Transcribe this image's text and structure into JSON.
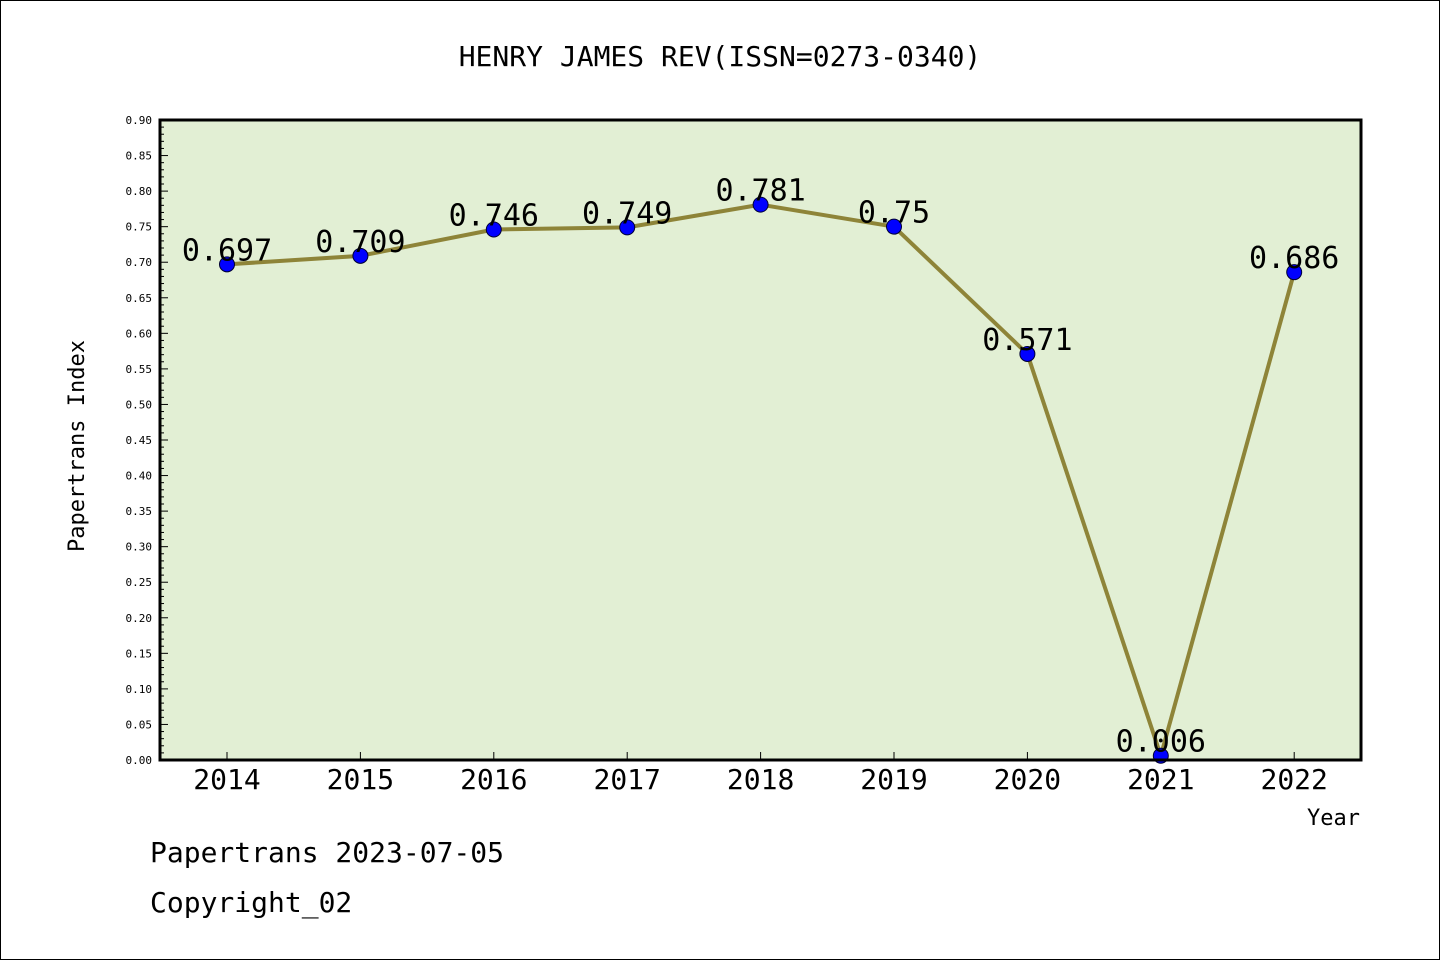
{
  "chart_data": {
    "type": "line",
    "title": "HENRY JAMES REV(ISSN=0273-0340)",
    "xlabel": "Year",
    "ylabel": "Papertrans Index",
    "categories": [
      "2014",
      "2015",
      "2016",
      "2017",
      "2018",
      "2019",
      "2020",
      "2021",
      "2022"
    ],
    "series": [
      {
        "values": [
          0.697,
          0.709,
          0.746,
          0.749,
          0.781,
          0.75,
          0.571,
          0.006,
          0.686
        ],
        "labels": [
          "0.697",
          "0.709",
          "0.746",
          "0.749",
          "0.781",
          "0.75",
          "0.571",
          "0.006",
          "0.686"
        ]
      }
    ],
    "ylim": [
      0,
      0.9
    ],
    "yticks": [
      "0.00",
      "0.05",
      "0.10",
      "0.15",
      "0.20",
      "0.25",
      "0.30",
      "0.35",
      "0.40",
      "0.45",
      "0.50",
      "0.55",
      "0.60",
      "0.65",
      "0.70",
      "0.75",
      "0.80",
      "0.85",
      "0.90"
    ],
    "grid": false,
    "colors": {
      "plot_background": "#e2efd4",
      "line": "#8e8438",
      "marker": "#0000ff",
      "frame": "#000000"
    }
  },
  "footer": {
    "line1": "Papertrans 2023-07-05",
    "line2": "Copyright_02"
  }
}
